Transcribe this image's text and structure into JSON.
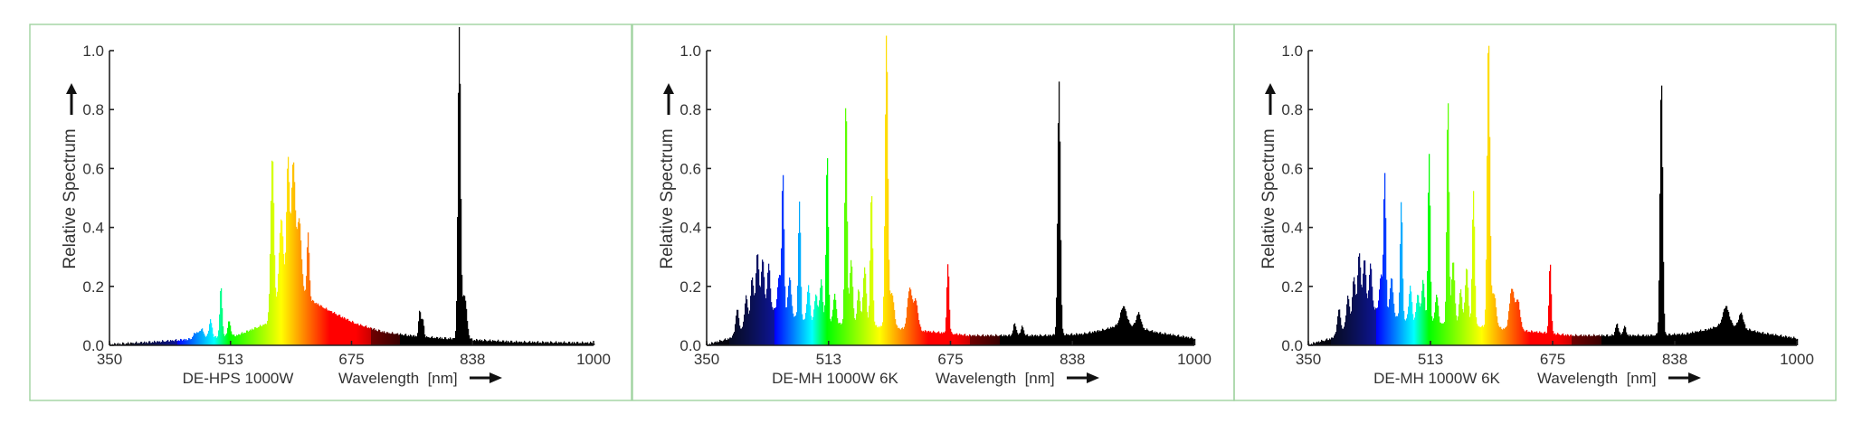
{
  "chart_data": [
    {
      "type": "area",
      "caption": "DE-HPS 1000W",
      "xlabel": "Wavelength  [nm]",
      "ylabel": "Relative Spectrum",
      "xlim": [
        350,
        1000
      ],
      "ylim": [
        0,
        1.0
      ],
      "x_ticks": [
        "350",
        "513",
        "675",
        "838",
        "1000"
      ],
      "y_ticks": [
        "0.0",
        "0.2",
        "0.4",
        "0.6",
        "0.8",
        "1.0"
      ],
      "colored": "spectrum",
      "grid": false,
      "baseline": [
        [
          350,
          0.0
        ],
        [
          420,
          0.01
        ],
        [
          470,
          0.02
        ],
        [
          520,
          0.03
        ],
        [
          560,
          0.07
        ],
        [
          600,
          0.18
        ],
        [
          640,
          0.12
        ],
        [
          680,
          0.07
        ],
        [
          720,
          0.04
        ],
        [
          770,
          0.025
        ],
        [
          840,
          0.015
        ],
        [
          900,
          0.008
        ],
        [
          1000,
          0.005
        ]
      ],
      "peaks": [
        {
          "x": 465,
          "y": 0.02,
          "w": 3
        },
        {
          "x": 473,
          "y": 0.03,
          "w": 3
        },
        {
          "x": 485,
          "y": 0.06,
          "w": 2
        },
        {
          "x": 499,
          "y": 0.17,
          "w": 1.6
        },
        {
          "x": 510,
          "y": 0.05,
          "w": 2
        },
        {
          "x": 568,
          "y": 0.55,
          "w": 2.2
        },
        {
          "x": 580,
          "y": 0.3,
          "w": 3
        },
        {
          "x": 589,
          "y": 0.48,
          "w": 2
        },
        {
          "x": 596,
          "y": 0.45,
          "w": 2.5
        },
        {
          "x": 604,
          "y": 0.25,
          "w": 3
        },
        {
          "x": 616,
          "y": 0.22,
          "w": 1.6
        },
        {
          "x": 766,
          "y": 0.09,
          "w": 1.5
        },
        {
          "x": 770,
          "y": 0.06,
          "w": 1.5
        },
        {
          "x": 819,
          "y": 1.05,
          "w": 1.8
        },
        {
          "x": 826,
          "y": 0.15,
          "w": 3
        }
      ]
    },
    {
      "type": "area",
      "caption": "DE-MH 1000W 6K",
      "xlabel": "Wavelength  [nm]",
      "ylabel": "Relative Spectrum",
      "xlim": [
        350,
        1000
      ],
      "ylim": [
        0,
        1.0
      ],
      "x_ticks": [
        "350",
        "513",
        "675",
        "838",
        "1000"
      ],
      "y_ticks": [
        "0.0",
        "0.2",
        "0.4",
        "0.6",
        "0.8",
        "1.0"
      ],
      "colored": "spectrum",
      "grid": false,
      "baseline": [
        [
          350,
          0.0
        ],
        [
          380,
          0.02
        ],
        [
          400,
          0.06
        ],
        [
          420,
          0.1
        ],
        [
          440,
          0.12
        ],
        [
          460,
          0.1
        ],
        [
          480,
          0.08
        ],
        [
          500,
          0.07
        ],
        [
          540,
          0.07
        ],
        [
          580,
          0.06
        ],
        [
          620,
          0.05
        ],
        [
          660,
          0.04
        ],
        [
          700,
          0.03
        ],
        [
          750,
          0.03
        ],
        [
          800,
          0.03
        ],
        [
          850,
          0.035
        ],
        [
          880,
          0.05
        ],
        [
          905,
          0.07
        ],
        [
          920,
          0.06
        ],
        [
          950,
          0.04
        ],
        [
          1000,
          0.02
        ]
      ],
      "peaks": [
        {
          "x": 390,
          "y": 0.08,
          "w": 2
        },
        {
          "x": 402,
          "y": 0.1,
          "w": 2
        },
        {
          "x": 410,
          "y": 0.15,
          "w": 2
        },
        {
          "x": 417,
          "y": 0.22,
          "w": 2
        },
        {
          "x": 424,
          "y": 0.19,
          "w": 2
        },
        {
          "x": 432,
          "y": 0.16,
          "w": 2
        },
        {
          "x": 446,
          "y": 0.12,
          "w": 2
        },
        {
          "x": 451,
          "y": 0.47,
          "w": 1.5
        },
        {
          "x": 460,
          "y": 0.13,
          "w": 2
        },
        {
          "x": 473,
          "y": 0.4,
          "w": 1.5
        },
        {
          "x": 485,
          "y": 0.12,
          "w": 2
        },
        {
          "x": 495,
          "y": 0.1,
          "w": 2
        },
        {
          "x": 502,
          "y": 0.15,
          "w": 2
        },
        {
          "x": 510,
          "y": 0.58,
          "w": 1.5
        },
        {
          "x": 520,
          "y": 0.1,
          "w": 2
        },
        {
          "x": 535,
          "y": 0.77,
          "w": 1.5
        },
        {
          "x": 542,
          "y": 0.22,
          "w": 2
        },
        {
          "x": 552,
          "y": 0.12,
          "w": 2
        },
        {
          "x": 560,
          "y": 0.2,
          "w": 2
        },
        {
          "x": 569,
          "y": 0.46,
          "w": 1.6
        },
        {
          "x": 589,
          "y": 0.99,
          "w": 1.8
        },
        {
          "x": 596,
          "y": 0.12,
          "w": 3
        },
        {
          "x": 620,
          "y": 0.14,
          "w": 3
        },
        {
          "x": 628,
          "y": 0.1,
          "w": 3
        },
        {
          "x": 671,
          "y": 0.24,
          "w": 1.5
        },
        {
          "x": 760,
          "y": 0.04,
          "w": 2
        },
        {
          "x": 770,
          "y": 0.03,
          "w": 2
        },
        {
          "x": 819,
          "y": 0.86,
          "w": 1.8
        },
        {
          "x": 905,
          "y": 0.06,
          "w": 4
        },
        {
          "x": 925,
          "y": 0.05,
          "w": 3
        }
      ]
    },
    {
      "type": "area",
      "caption": "DE-MH 1000W 6K",
      "xlabel": "Wavelength  [nm]",
      "ylabel": "Relative Spectrum",
      "xlim": [
        350,
        1000
      ],
      "ylim": [
        0,
        1.0
      ],
      "x_ticks": [
        "350",
        "513",
        "675",
        "838",
        "1000"
      ],
      "y_ticks": [
        "0.0",
        "0.2",
        "0.4",
        "0.6",
        "0.8",
        "1.0"
      ],
      "colored": "spectrum",
      "grid": false,
      "baseline": [
        [
          350,
          0.0
        ],
        [
          380,
          0.02
        ],
        [
          400,
          0.06
        ],
        [
          420,
          0.1
        ],
        [
          440,
          0.12
        ],
        [
          460,
          0.1
        ],
        [
          480,
          0.08
        ],
        [
          500,
          0.07
        ],
        [
          540,
          0.07
        ],
        [
          580,
          0.06
        ],
        [
          620,
          0.05
        ],
        [
          660,
          0.04
        ],
        [
          700,
          0.03
        ],
        [
          750,
          0.03
        ],
        [
          800,
          0.03
        ],
        [
          850,
          0.035
        ],
        [
          880,
          0.05
        ],
        [
          905,
          0.07
        ],
        [
          920,
          0.06
        ],
        [
          950,
          0.04
        ],
        [
          1000,
          0.02
        ]
      ],
      "peaks": [
        {
          "x": 390,
          "y": 0.08,
          "w": 2
        },
        {
          "x": 402,
          "y": 0.1,
          "w": 2
        },
        {
          "x": 410,
          "y": 0.15,
          "w": 2
        },
        {
          "x": 417,
          "y": 0.22,
          "w": 2
        },
        {
          "x": 424,
          "y": 0.19,
          "w": 2
        },
        {
          "x": 432,
          "y": 0.16,
          "w": 2
        },
        {
          "x": 446,
          "y": 0.12,
          "w": 2
        },
        {
          "x": 451,
          "y": 0.47,
          "w": 1.5
        },
        {
          "x": 460,
          "y": 0.13,
          "w": 2
        },
        {
          "x": 473,
          "y": 0.4,
          "w": 1.5
        },
        {
          "x": 485,
          "y": 0.12,
          "w": 2
        },
        {
          "x": 495,
          "y": 0.1,
          "w": 2
        },
        {
          "x": 502,
          "y": 0.15,
          "w": 2
        },
        {
          "x": 510,
          "y": 0.58,
          "w": 1.5
        },
        {
          "x": 520,
          "y": 0.1,
          "w": 2
        },
        {
          "x": 535,
          "y": 0.77,
          "w": 1.5
        },
        {
          "x": 542,
          "y": 0.22,
          "w": 2
        },
        {
          "x": 552,
          "y": 0.12,
          "w": 2
        },
        {
          "x": 560,
          "y": 0.2,
          "w": 2
        },
        {
          "x": 569,
          "y": 0.46,
          "w": 1.6
        },
        {
          "x": 589,
          "y": 0.99,
          "w": 1.8
        },
        {
          "x": 596,
          "y": 0.12,
          "w": 3
        },
        {
          "x": 620,
          "y": 0.14,
          "w": 3
        },
        {
          "x": 628,
          "y": 0.1,
          "w": 3
        },
        {
          "x": 671,
          "y": 0.24,
          "w": 1.5
        },
        {
          "x": 760,
          "y": 0.04,
          "w": 2
        },
        {
          "x": 770,
          "y": 0.03,
          "w": 2
        },
        {
          "x": 819,
          "y": 0.87,
          "w": 1.8
        },
        {
          "x": 905,
          "y": 0.06,
          "w": 4
        },
        {
          "x": 925,
          "y": 0.05,
          "w": 3
        }
      ]
    }
  ],
  "style": {
    "frame_color": "#9fd39f",
    "text_color": "#333333",
    "axis_color": "#222222",
    "ir_color": "#000000"
  }
}
